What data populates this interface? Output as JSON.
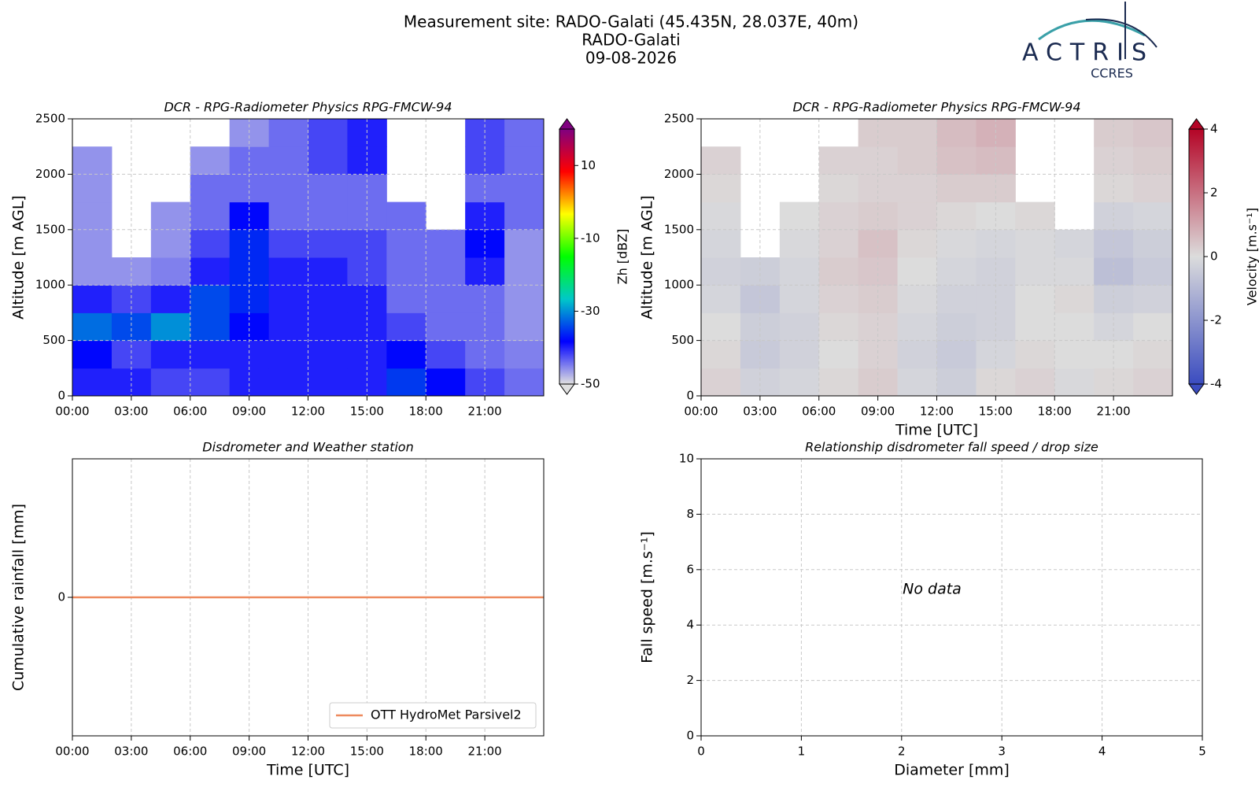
{
  "header": {
    "title": [
      "Measurement site: RADO-Galati (45.435N, 28.037E, 40m)",
      "RADO-Galati",
      "09-08-2026"
    ],
    "logo": "ACTRIS",
    "logo_sub": "CCRES"
  },
  "chart_data": [
    {
      "type": "heatmap",
      "title": "DCR - RPG-Radiometer Physics RPG-FMCW-94",
      "ylabel": "Altitude [m AGL]",
      "colorbar_label": "Zh [dBZ]",
      "x_bins": [
        0,
        2,
        4,
        6,
        8,
        10,
        12,
        14,
        16,
        18,
        20,
        22,
        24
      ],
      "y_bins": [
        0,
        250,
        500,
        750,
        1000,
        1250,
        1500,
        1750,
        2000,
        2250,
        2500
      ],
      "z": [
        [
          -40,
          -40,
          -42,
          -42,
          -40,
          -40,
          -40,
          -40,
          -35,
          -38,
          -42,
          -44
        ],
        [
          -38,
          -42,
          -40,
          -40,
          -40,
          -40,
          -40,
          -40,
          -38,
          -42,
          -44,
          -45
        ],
        [
          -32,
          -34,
          -30,
          -34,
          -38,
          -40,
          -40,
          -40,
          -42,
          -44,
          -44,
          -46
        ],
        [
          -40,
          -42,
          -40,
          -34,
          -36,
          -40,
          -40,
          -40,
          -44,
          -44,
          -44,
          -46
        ],
        [
          -46,
          -46,
          -45,
          -40,
          -36,
          -40,
          -40,
          -42,
          -44,
          -44,
          -40,
          -46
        ],
        [
          -46,
          null,
          -46,
          -42,
          -36,
          -42,
          -42,
          -42,
          -44,
          -44,
          -38,
          -46
        ],
        [
          -46,
          null,
          -46,
          -44,
          -38,
          -44,
          -44,
          -44,
          -44,
          null,
          -40,
          -44
        ],
        [
          -46,
          null,
          null,
          -44,
          -44,
          -44,
          -44,
          -44,
          null,
          null,
          -44,
          -44
        ],
        [
          -46,
          null,
          null,
          -46,
          -44,
          -44,
          -42,
          -40,
          null,
          null,
          -42,
          -44
        ],
        [
          null,
          null,
          null,
          null,
          -46,
          -44,
          -42,
          -40,
          null,
          null,
          -42,
          -44
        ]
      ],
      "xlim": [
        0,
        24
      ],
      "ylim": [
        0,
        2500
      ],
      "xticks": [
        {
          "value": 0,
          "label": "00:00"
        },
        {
          "value": 3,
          "label": "03:00"
        },
        {
          "value": 6,
          "label": "06:00"
        },
        {
          "value": 9,
          "label": "09:00"
        },
        {
          "value": 12,
          "label": "12:00"
        },
        {
          "value": 15,
          "label": "15:00"
        },
        {
          "value": 18,
          "label": "18:00"
        },
        {
          "value": 21,
          "label": "21:00"
        }
      ],
      "yticks": [
        0,
        500,
        1000,
        1500,
        2000,
        2500
      ],
      "clim": [
        -50,
        20
      ],
      "cticks": [
        -50,
        -30,
        -10,
        10
      ],
      "colormap": [
        "#e0e0e0",
        "#0000ff",
        "#00c8c8",
        "#00ff00",
        "#ffff00",
        "#ff0000",
        "#800080"
      ],
      "grid": true
    },
    {
      "type": "heatmap",
      "title": "DCR - RPG-Radiometer Physics RPG-FMCW-94",
      "xlabel": "Time [UTC]",
      "ylabel": "Altitude [m AGL]",
      "colorbar_label": "Velocity [m.s⁻¹]",
      "x_bins": [
        0,
        2,
        4,
        6,
        8,
        10,
        12,
        14,
        16,
        18,
        20,
        22,
        24
      ],
      "y_bins": [
        0,
        250,
        500,
        750,
        1000,
        1250,
        1500,
        1750,
        2000,
        2250,
        2500
      ],
      "z": [
        [
          0.2,
          -0.3,
          -0.2,
          0.1,
          0.3,
          -0.2,
          -0.4,
          0.1,
          0.2,
          -0.1,
          0.1,
          0.2
        ],
        [
          0.1,
          -0.5,
          -0.3,
          0,
          0.2,
          -0.3,
          -0.5,
          -0.2,
          0.1,
          0,
          0,
          0.1
        ],
        [
          0,
          -0.4,
          -0.3,
          0.1,
          0.2,
          -0.2,
          -0.4,
          -0.3,
          0,
          0,
          -0.2,
          0
        ],
        [
          -0.2,
          -0.6,
          -0.2,
          0.2,
          0.3,
          -0.1,
          -0.3,
          -0.3,
          0,
          0.1,
          -0.4,
          -0.3
        ],
        [
          -0.3,
          -0.4,
          -0.2,
          0.3,
          0.4,
          0,
          -0.2,
          -0.3,
          -0.1,
          -0.1,
          -0.8,
          -0.5
        ],
        [
          -0.2,
          null,
          -0.1,
          0.2,
          0.5,
          0.1,
          -0.1,
          -0.2,
          -0.1,
          -0.2,
          -0.6,
          -0.4
        ],
        [
          -0.1,
          null,
          0,
          0.2,
          0.3,
          0.2,
          0.1,
          0,
          0.1,
          null,
          -0.3,
          -0.2
        ],
        [
          0.1,
          null,
          null,
          0.1,
          0.2,
          0.2,
          0.3,
          0.3,
          null,
          null,
          0.1,
          0.2
        ],
        [
          0.2,
          null,
          null,
          0.2,
          0.2,
          0.3,
          0.5,
          0.6,
          null,
          null,
          0.2,
          0.3
        ],
        [
          null,
          null,
          null,
          null,
          0.3,
          0.3,
          0.6,
          0.8,
          null,
          null,
          0.3,
          0.4
        ]
      ],
      "xlim": [
        0,
        24
      ],
      "ylim": [
        0,
        2500
      ],
      "xticks": [
        {
          "value": 0,
          "label": "00:00"
        },
        {
          "value": 3,
          "label": "03:00"
        },
        {
          "value": 6,
          "label": "06:00"
        },
        {
          "value": 9,
          "label": "09:00"
        },
        {
          "value": 12,
          "label": "12:00"
        },
        {
          "value": 15,
          "label": "15:00"
        },
        {
          "value": 18,
          "label": "18:00"
        },
        {
          "value": 21,
          "label": "21:00"
        }
      ],
      "yticks": [
        0,
        500,
        1000,
        1500,
        2000,
        2500
      ],
      "clim": [
        -4,
        4
      ],
      "cticks": [
        -4,
        -2,
        0,
        2,
        4
      ],
      "colormap": [
        "#3b4cc0",
        "#dcdcdc",
        "#b40426"
      ],
      "grid": true
    },
    {
      "type": "line",
      "title": "Disdrometer and Weather station",
      "xlabel": "Time [UTC]",
      "ylabel": "Cumulative rainfall [mm]",
      "x": [
        0,
        24
      ],
      "series": [
        {
          "name": "OTT HydroMet Parsivel2",
          "color": "#ee8a5e",
          "values": [
            0,
            0
          ]
        }
      ],
      "xlim": [
        0,
        24
      ],
      "ylim": [
        -0.055,
        0.055
      ],
      "xticks": [
        {
          "value": 0,
          "label": "00:00"
        },
        {
          "value": 3,
          "label": "03:00"
        },
        {
          "value": 6,
          "label": "06:00"
        },
        {
          "value": 9,
          "label": "09:00"
        },
        {
          "value": 12,
          "label": "12:00"
        },
        {
          "value": 15,
          "label": "15:00"
        },
        {
          "value": 18,
          "label": "18:00"
        },
        {
          "value": 21,
          "label": "21:00"
        }
      ],
      "yticks": [
        0
      ],
      "legend": "lower right",
      "grid": true
    },
    {
      "type": "scatter",
      "title": "Relationship disdrometer fall speed / drop size",
      "xlabel": "Diameter [mm]",
      "ylabel": "Fall speed [m.s⁻¹]",
      "annotation": "No data",
      "xlim": [
        0,
        5
      ],
      "ylim": [
        0,
        10
      ],
      "xticks": [
        0,
        1,
        2,
        3,
        4,
        5
      ],
      "yticks": [
        0,
        2,
        4,
        6,
        8,
        10
      ],
      "grid": true
    }
  ]
}
